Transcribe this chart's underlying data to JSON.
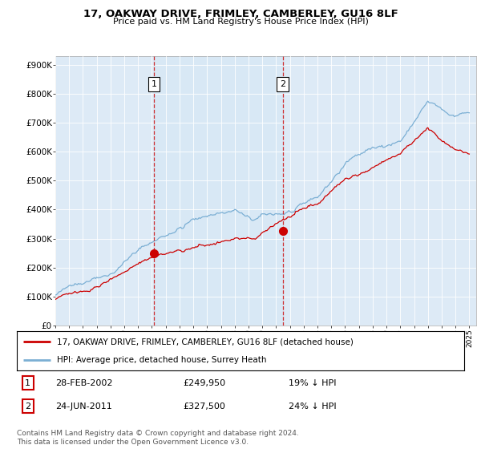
{
  "title": "17, OAKWAY DRIVE, FRIMLEY, CAMBERLEY, GU16 8LF",
  "subtitle": "Price paid vs. HM Land Registry's House Price Index (HPI)",
  "yticks": [
    0,
    100000,
    200000,
    300000,
    400000,
    500000,
    600000,
    700000,
    800000,
    900000
  ],
  "ytick_labels": [
    "£0",
    "£100K",
    "£200K",
    "£300K",
    "£400K",
    "£500K",
    "£600K",
    "£700K",
    "£800K",
    "£900K"
  ],
  "ylim": [
    0,
    930000
  ],
  "xlim_start": 1995.0,
  "xlim_end": 2025.5,
  "xticks": [
    1995,
    1996,
    1997,
    1998,
    1999,
    2000,
    2001,
    2002,
    2003,
    2004,
    2005,
    2006,
    2007,
    2008,
    2009,
    2010,
    2011,
    2012,
    2013,
    2014,
    2015,
    2016,
    2017,
    2018,
    2019,
    2020,
    2021,
    2022,
    2023,
    2024,
    2025
  ],
  "hpi_color": "#7bafd4",
  "price_color": "#cc0000",
  "marker_color": "#cc0000",
  "vline_color": "#cc0000",
  "shade_color": "#d8e8f5",
  "transaction1": {
    "date": 2002.15,
    "price": 249950,
    "label": "1"
  },
  "transaction2": {
    "date": 2011.48,
    "price": 327500,
    "label": "2"
  },
  "legend_entries": [
    "17, OAKWAY DRIVE, FRIMLEY, CAMBERLEY, GU16 8LF (detached house)",
    "HPI: Average price, detached house, Surrey Heath"
  ],
  "table_rows": [
    {
      "num": "1",
      "date": "28-FEB-2002",
      "price": "£249,950",
      "pct": "19% ↓ HPI"
    },
    {
      "num": "2",
      "date": "24-JUN-2011",
      "price": "£327,500",
      "pct": "24% ↓ HPI"
    }
  ],
  "footnote": "Contains HM Land Registry data © Crown copyright and database right 2024.\nThis data is licensed under the Open Government Licence v3.0.",
  "bg_color": "#ddeaf6",
  "plot_bg": "#ffffff",
  "grid_color": "#ffffff"
}
